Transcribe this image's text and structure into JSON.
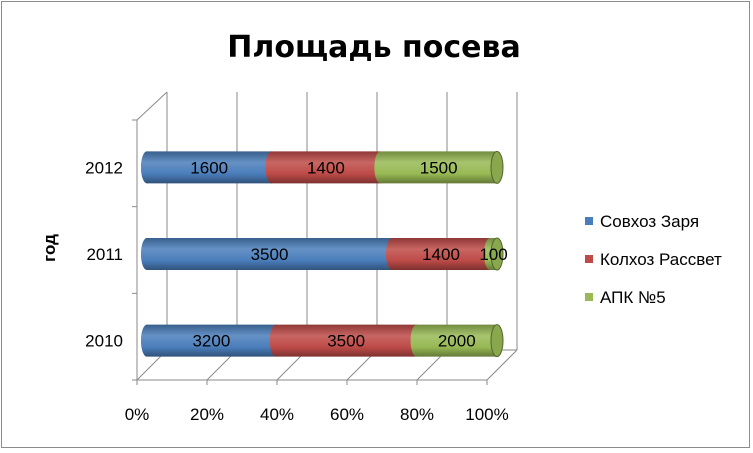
{
  "chart_data": {
    "type": "bar",
    "orientation": "horizontal",
    "stacking": "percent",
    "style": "3d-cylinder",
    "title": "Площадь посева",
    "ylabel": "год",
    "xlabel": "",
    "categories": [
      "2010",
      "2011",
      "2012"
    ],
    "x_ticks": [
      "0%",
      "20%",
      "40%",
      "60%",
      "80%",
      "100%"
    ],
    "xlim": [
      0,
      100
    ],
    "grid": true,
    "legend_position": "right",
    "series": [
      {
        "name": "Совхоз Заря",
        "color": "#4a7ebb",
        "values": [
          3200,
          3500,
          1600
        ]
      },
      {
        "name": "Колхоз Рассвет",
        "color": "#be4b48",
        "values": [
          3500,
          1400,
          1400
        ]
      },
      {
        "name": "АПК №5",
        "color": "#98b954",
        "values": [
          2000,
          100,
          1500
        ]
      }
    ]
  }
}
